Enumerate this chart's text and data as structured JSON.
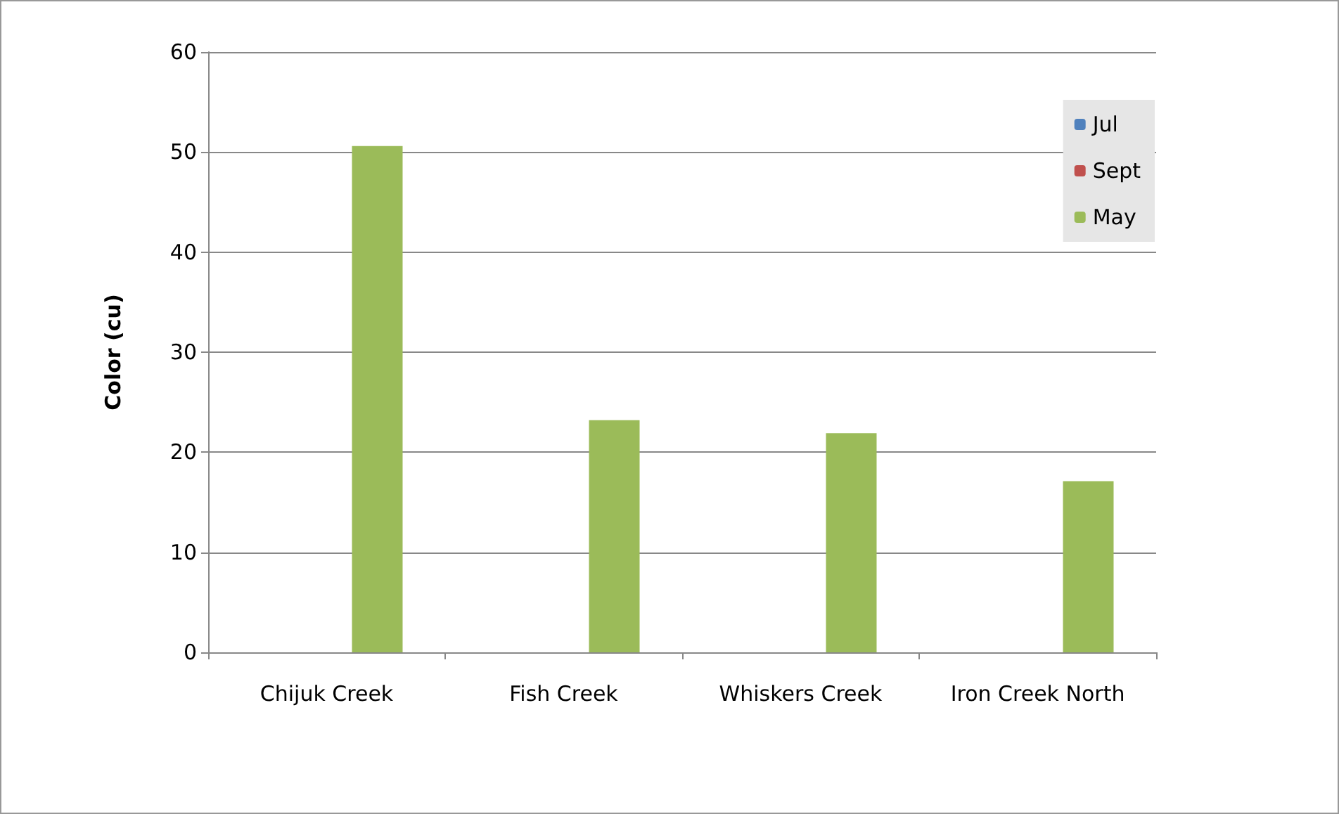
{
  "chart_data": {
    "type": "bar",
    "ylabel": "Color (cu)",
    "categories": [
      "Chijuk Creek",
      "Fish Creek",
      "Whiskers Creek",
      "Iron Creek North"
    ],
    "series": [
      {
        "name": "Jul",
        "color": "#4f81bd",
        "values": [
          null,
          null,
          null,
          null
        ]
      },
      {
        "name": "Sept",
        "color": "#c0504d",
        "values": [
          null,
          null,
          null,
          null
        ]
      },
      {
        "name": "May",
        "color": "#9bbb59",
        "values": [
          50.6,
          23.2,
          21.9,
          17.1
        ]
      }
    ],
    "ylim": [
      0,
      60
    ],
    "yticks": [
      0,
      10,
      20,
      30,
      40,
      50,
      60
    ],
    "grid": "y",
    "legend": "top right"
  }
}
